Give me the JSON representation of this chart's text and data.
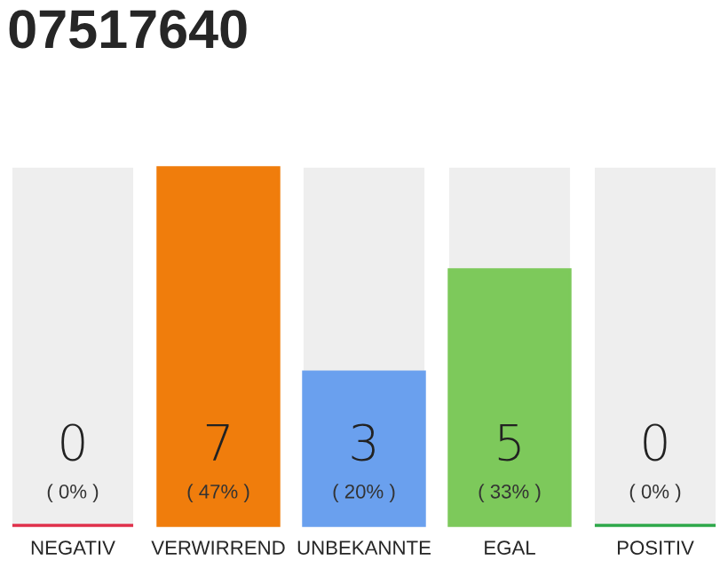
{
  "chart_data": {
    "type": "bar",
    "title": "07517640",
    "categories": [
      "NEGATIV",
      "VERWIRREND",
      "UNBEKANNTE",
      "EGAL",
      "POSITIV"
    ],
    "values": [
      0,
      7,
      3,
      5,
      0
    ],
    "colors": [
      "#e0314b",
      "#f07d0c",
      "#6aa0ee",
      "#7dc95b",
      "#2ea84a"
    ],
    "value_labels": [
      "0",
      "7",
      "3",
      "5",
      "0"
    ],
    "annotations": [
      "( 0% )",
      "( 47% )",
      "( 20% )",
      "( 33% )",
      "( 0% )"
    ],
    "grid": false,
    "legend": false
  }
}
